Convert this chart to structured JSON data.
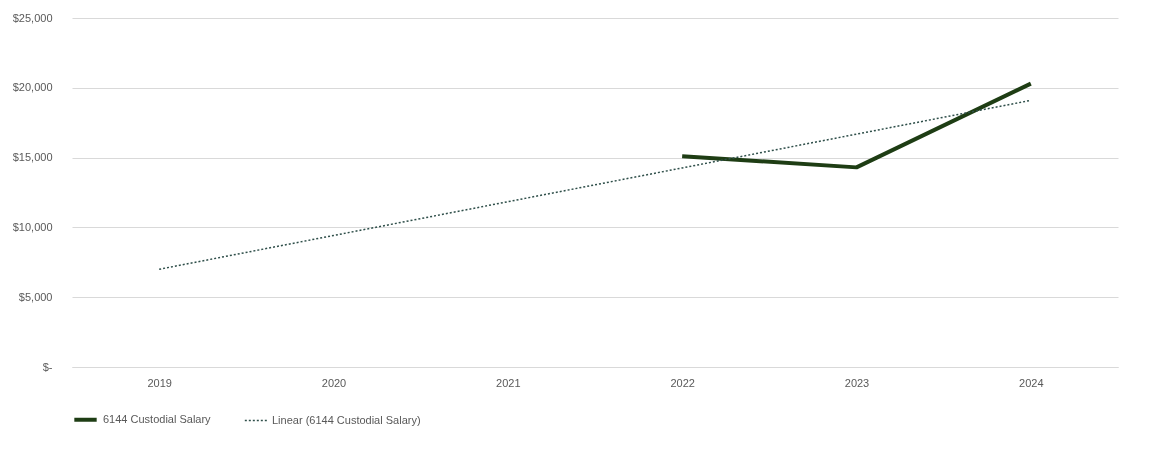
{
  "chart_data": {
    "type": "line",
    "categories": [
      "2019",
      "2020",
      "2021",
      "2022",
      "2023",
      "2024"
    ],
    "series": [
      {
        "name": "6144 Custodial Salary",
        "color": "#1e3d14",
        "type": "line",
        "line_style": "solid",
        "values": [
          null,
          null,
          null,
          15100,
          14300,
          20300
        ]
      },
      {
        "name": "Linear (6144 Custodial Salary)",
        "color": "#2f4f4a",
        "type": "line",
        "line_style": "dotted",
        "values": [
          7000,
          9420,
          11840,
          14260,
          16680,
          19100
        ]
      }
    ],
    "ylim": [
      0,
      25000
    ],
    "yticks": [
      {
        "value": 0,
        "label": "$-"
      },
      {
        "value": 5000,
        "label": "$5,000"
      },
      {
        "value": 10000,
        "label": "$10,000"
      },
      {
        "value": 15000,
        "label": "$15,000"
      },
      {
        "value": 20000,
        "label": "$20,000"
      },
      {
        "value": 25000,
        "label": "$25,000"
      }
    ],
    "grid": "y",
    "legend": "bottom",
    "marker": "none"
  }
}
